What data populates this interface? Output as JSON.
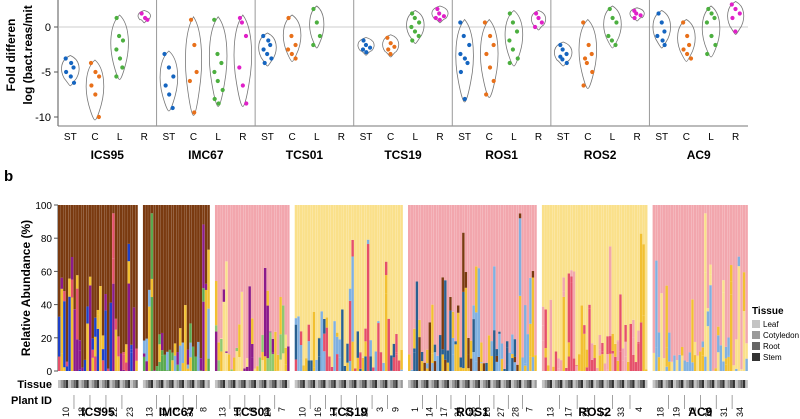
{
  "panel_b_label": "b",
  "chart_data": [
    {
      "type": "scatter",
      "subtype": "violin-strip",
      "title": "",
      "ylabel_lines": [
        "Fold differen",
        "log (bact.reas/mit"
      ],
      "ylim": [
        -11,
        3
      ],
      "yticks": [
        0,
        -5,
        -10
      ],
      "reference_line": 0,
      "tissue_labels": [
        "ST",
        "C",
        "L",
        "R"
      ],
      "tissue_colors": [
        "#1565c0",
        "#e8701a",
        "#4caf3f",
        "#e020c8"
      ],
      "groups": [
        {
          "name": "ICS95",
          "tissues": [
            {
              "t": "ST",
              "values": [
                -3.5,
                -4.0,
                -4.5,
                -5.0,
                -5.5,
                -6.2
              ]
            },
            {
              "t": "C",
              "values": [
                -4.0,
                -5.0,
                -5.5,
                -6.5,
                -7.5,
                -10.0
              ]
            },
            {
              "t": "L",
              "values": [
                1.0,
                -1.0,
                -1.5,
                -2.5,
                -3.5,
                -4.5,
                -5.5
              ]
            },
            {
              "t": "R",
              "values": [
                1.5,
                1.0,
                0.8
              ]
            }
          ]
        },
        {
          "name": "IMC67",
          "tissues": [
            {
              "t": "ST",
              "values": [
                -3.0,
                -4.5,
                -5.5,
                -6.5,
                -7.5,
                -9.0
              ]
            },
            {
              "t": "C",
              "values": [
                0.8,
                -2.0,
                -5.0,
                -6.0,
                -9.5
              ]
            },
            {
              "t": "L",
              "values": [
                0.8,
                -3.0,
                -4.0,
                -5.0,
                -6.0,
                -7.0,
                -8.0,
                -8.5
              ]
            },
            {
              "t": "R",
              "values": [
                1.0,
                0.5,
                -1.0,
                -4.5,
                -6.5,
                -8.5
              ]
            }
          ]
        },
        {
          "name": "TCS01",
          "tissues": [
            {
              "t": "ST",
              "values": [
                -1.0,
                -1.5,
                -2.0,
                -2.5,
                -3.0,
                -3.5,
                -4.0
              ]
            },
            {
              "t": "C",
              "values": [
                1.0,
                -1.0,
                -2.0,
                -2.5,
                -3.0,
                -3.5
              ]
            },
            {
              "t": "L",
              "values": [
                2.0,
                0.5,
                -1.0,
                -2.0
              ]
            },
            {
              "t": "R",
              "values": []
            }
          ]
        },
        {
          "name": "TCS19",
          "tissues": [
            {
              "t": "ST",
              "values": [
                -1.5,
                -2.0,
                -2.3,
                -2.5,
                -2.8
              ]
            },
            {
              "t": "C",
              "values": [
                -1.2,
                -1.8,
                -2.2,
                -2.5,
                -3.0
              ]
            },
            {
              "t": "L",
              "values": [
                1.5,
                1.0,
                0.5,
                0.0,
                -0.5,
                -1.0,
                -1.5
              ]
            },
            {
              "t": "R",
              "values": [
                2.0,
                1.5,
                1.2,
                1.0,
                0.8
              ]
            }
          ]
        },
        {
          "name": "ROS1",
          "tissues": [
            {
              "t": "ST",
              "values": [
                0.5,
                -1.0,
                -2.0,
                -3.0,
                -3.5,
                -4.0,
                -5.0,
                -8.0
              ]
            },
            {
              "t": "C",
              "values": [
                0.5,
                -1.0,
                -2.0,
                -3.0,
                -4.5,
                -6.0,
                -7.5
              ]
            },
            {
              "t": "L",
              "values": [
                1.5,
                0.5,
                -0.5,
                -1.5,
                -2.5,
                -3.5,
                -4.0
              ]
            },
            {
              "t": "R",
              "values": [
                1.5,
                1.0,
                0.5,
                0.0
              ]
            }
          ]
        },
        {
          "name": "ROS2",
          "tissues": [
            {
              "t": "ST",
              "values": [
                -2.0,
                -2.5,
                -3.0,
                -3.3,
                -3.6,
                -4.0
              ]
            },
            {
              "t": "C",
              "values": [
                0.5,
                -2.0,
                -3.0,
                -3.5,
                -4.0,
                -5.0,
                -6.5
              ]
            },
            {
              "t": "L",
              "values": [
                2.0,
                1.0,
                0.5,
                -1.0,
                -1.5,
                -2.0
              ]
            },
            {
              "t": "R",
              "values": [
                1.8,
                1.5,
                1.3,
                1.0
              ]
            }
          ]
        },
        {
          "name": "AC9",
          "tissues": [
            {
              "t": "ST",
              "values": [
                1.5,
                0.5,
                -0.5,
                -1.0,
                -1.5,
                -2.0
              ]
            },
            {
              "t": "C",
              "values": [
                0.5,
                -1.0,
                -2.0,
                -2.5,
                -3.0,
                -3.5
              ]
            },
            {
              "t": "L",
              "values": [
                2.0,
                1.5,
                1.0,
                0.5,
                -1.0,
                -2.0,
                -3.0
              ]
            },
            {
              "t": "R",
              "values": [
                2.5,
                2.0,
                1.5,
                1.0,
                -0.5
              ]
            }
          ]
        }
      ]
    },
    {
      "type": "bar",
      "subtype": "stacked-100",
      "title": "",
      "ylabel": "Relative Abundance (%)",
      "ylim": [
        0,
        100
      ],
      "yticks": [
        0,
        20,
        40,
        60,
        80,
        100
      ],
      "legend": {
        "title": "Tissue",
        "position": "right",
        "entries": [
          {
            "label": "Leaf",
            "color": "#c4c4c4"
          },
          {
            "label": "Cotyledon",
            "color": "#9a9a9a"
          },
          {
            "label": "Root",
            "color": "#666666"
          },
          {
            "label": "Stem",
            "color": "#333333"
          }
        ]
      },
      "row_labels": {
        "tissue": "Tissue",
        "plant": "Plant ID"
      },
      "groups": [
        {
          "name": "ICS95",
          "bars": 31,
          "dominant": "#7a3a10",
          "secondary": [
            "#8b1a8b",
            "#1e40c8",
            "#e5506a",
            "#f2c030"
          ],
          "plant_ids": [
            "10",
            "18",
            "2",
            "22",
            "23"
          ]
        },
        {
          "name": "IMC67",
          "bars": 26,
          "dominant": "#7a3a10",
          "secondary": [
            "#80b0e0",
            "#f2c030",
            "#8b1a8b",
            "#5aaa50"
          ],
          "plant_ids": [
            "13",
            "17",
            "3",
            "31",
            "8"
          ]
        },
        {
          "name": "TCS01",
          "bars": 29,
          "dominant": "#f2a6ad",
          "secondary": [
            "#fae08a",
            "#f2c030",
            "#8fc870",
            "#8b1a8b"
          ],
          "plant_ids": [
            "13",
            "15",
            "2",
            "29",
            "7"
          ]
        },
        {
          "name": "TCS19",
          "bars": 42,
          "dominant": "#fae08a",
          "secondary": [
            "#80b0e0",
            "#f2c030",
            "#e5506a",
            "#2a6090"
          ],
          "plant_ids": [
            "10",
            "16",
            "17",
            "20",
            "22",
            "3",
            "9"
          ]
        },
        {
          "name": "ROS1",
          "bars": 50,
          "dominant": "#f2a6ad",
          "secondary": [
            "#80b0e0",
            "#7a3a10",
            "#f2c030",
            "#2a6090"
          ],
          "plant_ids": [
            "1",
            "14",
            "17",
            "24",
            "25",
            "26",
            "27",
            "28",
            "7"
          ]
        },
        {
          "name": "ROS2",
          "bars": 41,
          "dominant": "#fae08a",
          "secondary": [
            "#f2a6ad",
            "#f2c030",
            "#e5506a"
          ],
          "plant_ids": [
            "13",
            "17",
            "24",
            "27",
            "33",
            "4"
          ]
        },
        {
          "name": "AC9",
          "bars": 37,
          "dominant": "#f2a6ad",
          "secondary": [
            "#fae08a",
            "#f2c030",
            "#80b0e0"
          ],
          "plant_ids": [
            "18",
            "19",
            "2",
            "24",
            "31",
            "34"
          ]
        }
      ]
    }
  ]
}
